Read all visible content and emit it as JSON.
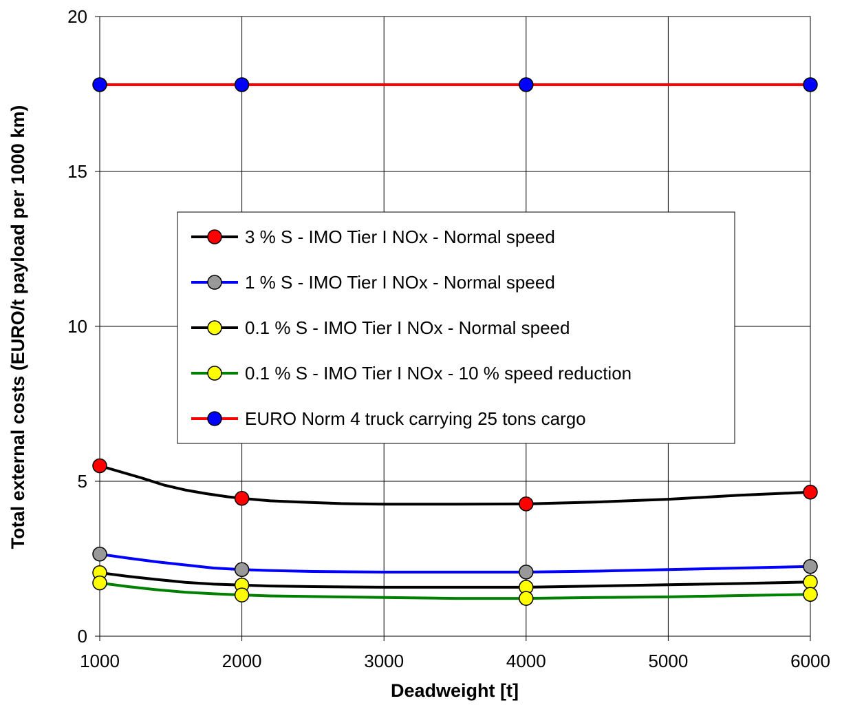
{
  "chart_data": {
    "type": "line",
    "title": "",
    "xlabel": "Deadweight [t]",
    "ylabel": "Total external costs (EURO/t payload per 1000 km)",
    "xlim": [
      1000,
      6000
    ],
    "ylim": [
      0,
      20
    ],
    "xticks": [
      1000,
      2000,
      3000,
      4000,
      5000,
      6000
    ],
    "yticks": [
      0,
      5,
      10,
      15,
      20
    ],
    "grid": true,
    "legend_position": "center-left",
    "series": [
      {
        "name": "3 % S - IMO Tier I NOx - Normal speed",
        "line_color": "#000000",
        "marker_color": "#ff0000",
        "x": [
          1000,
          2000,
          4000,
          6000
        ],
        "y": [
          5.5,
          4.45,
          4.27,
          4.65
        ],
        "curve": [
          [
            1000,
            5.5
          ],
          [
            1150,
            5.3
          ],
          [
            1300,
            5.1
          ],
          [
            1450,
            4.88
          ],
          [
            1600,
            4.72
          ],
          [
            1750,
            4.6
          ],
          [
            1900,
            4.5
          ],
          [
            2000,
            4.45
          ],
          [
            2200,
            4.37
          ],
          [
            2400,
            4.33
          ],
          [
            2700,
            4.28
          ],
          [
            3000,
            4.26
          ],
          [
            3500,
            4.26
          ],
          [
            4000,
            4.27
          ],
          [
            4500,
            4.33
          ],
          [
            5000,
            4.42
          ],
          [
            5500,
            4.55
          ],
          [
            6000,
            4.65
          ]
        ]
      },
      {
        "name": "1 % S - IMO Tier I NOx - Normal speed",
        "line_color": "#0000ff",
        "marker_color": "#999999",
        "x": [
          1000,
          2000,
          4000,
          6000
        ],
        "y": [
          2.65,
          2.15,
          2.07,
          2.25
        ],
        "curve": [
          [
            1000,
            2.65
          ],
          [
            1200,
            2.52
          ],
          [
            1400,
            2.4
          ],
          [
            1600,
            2.3
          ],
          [
            1800,
            2.2
          ],
          [
            2000,
            2.15
          ],
          [
            2200,
            2.12
          ],
          [
            2500,
            2.09
          ],
          [
            3000,
            2.07
          ],
          [
            3500,
            2.07
          ],
          [
            4000,
            2.07
          ],
          [
            4500,
            2.1
          ],
          [
            5000,
            2.15
          ],
          [
            5500,
            2.2
          ],
          [
            6000,
            2.25
          ]
        ]
      },
      {
        "name": "0.1 % S - IMO Tier I NOx - Normal speed",
        "line_color": "#000000",
        "marker_color": "#ffff00",
        "x": [
          1000,
          2000,
          4000,
          6000
        ],
        "y": [
          2.05,
          1.65,
          1.58,
          1.75
        ],
        "curve": [
          [
            1000,
            2.05
          ],
          [
            1200,
            1.93
          ],
          [
            1400,
            1.83
          ],
          [
            1600,
            1.74
          ],
          [
            1800,
            1.68
          ],
          [
            2000,
            1.65
          ],
          [
            2200,
            1.62
          ],
          [
            2500,
            1.6
          ],
          [
            3000,
            1.58
          ],
          [
            3500,
            1.58
          ],
          [
            4000,
            1.58
          ],
          [
            4500,
            1.62
          ],
          [
            5000,
            1.66
          ],
          [
            5500,
            1.7
          ],
          [
            6000,
            1.75
          ]
        ]
      },
      {
        "name": "0.1 % S - IMO Tier I NOx - 10 % speed reduction",
        "line_color": "#008000",
        "marker_color": "#ffff00",
        "x": [
          1000,
          2000,
          4000,
          6000
        ],
        "y": [
          1.72,
          1.33,
          1.22,
          1.35
        ],
        "curve": [
          [
            1000,
            1.72
          ],
          [
            1200,
            1.6
          ],
          [
            1400,
            1.5
          ],
          [
            1600,
            1.42
          ],
          [
            1800,
            1.37
          ],
          [
            2000,
            1.33
          ],
          [
            2200,
            1.3
          ],
          [
            2500,
            1.28
          ],
          [
            3000,
            1.25
          ],
          [
            3500,
            1.22
          ],
          [
            4000,
            1.22
          ],
          [
            4500,
            1.25
          ],
          [
            5000,
            1.27
          ],
          [
            5500,
            1.31
          ],
          [
            6000,
            1.35
          ]
        ]
      },
      {
        "name": "EURO Norm 4 truck carrying 25 tons cargo",
        "line_color": "#ff0000",
        "marker_color": "#0000ff",
        "x": [
          1000,
          2000,
          4000,
          6000
        ],
        "y": [
          17.8,
          17.8,
          17.8,
          17.8
        ],
        "curve": [
          [
            1000,
            17.8
          ],
          [
            6000,
            17.8
          ]
        ]
      }
    ]
  }
}
